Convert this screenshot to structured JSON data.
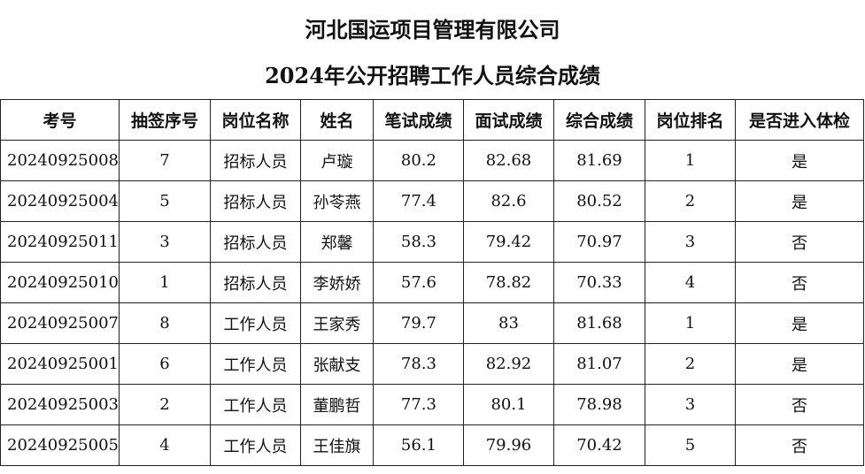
{
  "title": "河北国运项目管理有限公司",
  "subtitle": "2024年公开招聘工作人员综合成绩",
  "table": {
    "headers": [
      "考号",
      "抽签序号",
      "岗位名称",
      "姓名",
      "笔试成绩",
      "面试成绩",
      "综合成绩",
      "岗位排名",
      "是否进入体检"
    ],
    "rows": [
      [
        "20240925008",
        "7",
        "招标人员",
        "卢璇",
        "80.2",
        "82.68",
        "81.69",
        "1",
        "是"
      ],
      [
        "20240925004",
        "5",
        "招标人员",
        "孙苓燕",
        "77.4",
        "82.6",
        "80.52",
        "2",
        "是"
      ],
      [
        "20240925011",
        "3",
        "招标人员",
        "郑馨",
        "58.3",
        "79.42",
        "70.97",
        "3",
        "否"
      ],
      [
        "20240925010",
        "1",
        "招标人员",
        "李娇娇",
        "57.6",
        "78.82",
        "70.33",
        "4",
        "否"
      ],
      [
        "20240925007",
        "8",
        "工作人员",
        "王家秀",
        "79.7",
        "83",
        "81.68",
        "1",
        "是"
      ],
      [
        "20240925001",
        "6",
        "工作人员",
        "张献支",
        "78.3",
        "82.92",
        "81.07",
        "2",
        "是"
      ],
      [
        "20240925003",
        "2",
        "工作人员",
        "董鹏哲",
        "77.3",
        "80.1",
        "78.98",
        "3",
        "否"
      ],
      [
        "20240925005",
        "4",
        "工作人员",
        "王佳旗",
        "56.1",
        "79.96",
        "70.42",
        "5",
        "否"
      ]
    ]
  }
}
